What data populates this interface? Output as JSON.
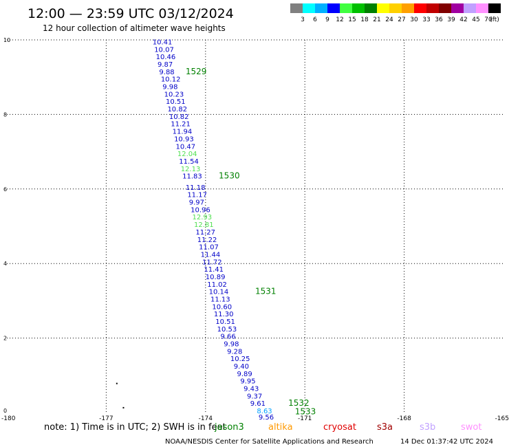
{
  "header": {
    "title": "12:00 — 23:59 UTC 03/12/2024",
    "subtitle": "12 hour collection of altimeter wave heights",
    "color_scale": {
      "colors": [
        "#808080",
        "#00ffff",
        "#00b0ff",
        "#0000ff",
        "#40ff40",
        "#00c000",
        "#008000",
        "#ffff00",
        "#ffd000",
        "#ffa000",
        "#ff0000",
        "#c00000",
        "#800000",
        "#a000a0",
        "#c0a0ff",
        "#ff90ff",
        "#000000"
      ],
      "labels": [
        "3",
        "6",
        "9",
        "12",
        "15",
        "18",
        "21",
        "24",
        "27",
        "30",
        "33",
        "36",
        "39",
        "42",
        "45",
        "70",
        "(ft)"
      ]
    }
  },
  "chart_data": {
    "type": "scatter",
    "title": "12:00 — 23:59 UTC 03/12/2024",
    "subtitle": "12 hour collection of altimeter wave heights",
    "xlabel": "",
    "ylabel": "",
    "xlim": [
      -180,
      -165
    ],
    "ylim": [
      0,
      10
    ],
    "x_ticks": [
      "-180",
      "-177",
      "-174",
      "-171",
      "-168",
      "-165"
    ],
    "y_ticks": [
      "0",
      "2",
      "4",
      "6",
      "8",
      "10"
    ],
    "grid": true,
    "points": [
      {
        "x": -175.6,
        "y": 9.88,
        "label": "10.41",
        "color": "#0000c8"
      },
      {
        "x": -175.55,
        "y": 9.68,
        "label": "10.07",
        "color": "#0000c8"
      },
      {
        "x": -175.5,
        "y": 9.48,
        "label": "10.46",
        "color": "#0000c8"
      },
      {
        "x": -175.45,
        "y": 9.28,
        "label": "9.87",
        "color": "#0000c8"
      },
      {
        "x": -175.4,
        "y": 9.08,
        "label": "9.88",
        "color": "#0000c8"
      },
      {
        "x": -175.35,
        "y": 8.88,
        "label": "10.12",
        "color": "#0000c8"
      },
      {
        "x": -175.3,
        "y": 8.68,
        "label": "9.98",
        "color": "#0000c8"
      },
      {
        "x": -175.25,
        "y": 8.48,
        "label": "10.23",
        "color": "#0000c8"
      },
      {
        "x": -175.2,
        "y": 8.28,
        "label": "10.51",
        "color": "#0000c8"
      },
      {
        "x": -175.15,
        "y": 8.08,
        "label": "10.82",
        "color": "#0000c8"
      },
      {
        "x": -175.1,
        "y": 7.88,
        "label": "10.82",
        "color": "#0000c8"
      },
      {
        "x": -175.05,
        "y": 7.68,
        "label": "11.21",
        "color": "#0000c8"
      },
      {
        "x": -175.0,
        "y": 7.48,
        "label": "11.94",
        "color": "#0000c8"
      },
      {
        "x": -174.95,
        "y": 7.28,
        "label": "10.93",
        "color": "#0000c8"
      },
      {
        "x": -174.9,
        "y": 7.08,
        "label": "10.47",
        "color": "#0000c8"
      },
      {
        "x": -174.85,
        "y": 6.88,
        "label": "12.04",
        "color": "#50e050"
      },
      {
        "x": -174.8,
        "y": 6.68,
        "label": "11.54",
        "color": "#0000c8"
      },
      {
        "x": -174.75,
        "y": 6.48,
        "label": "12.13",
        "color": "#50e050"
      },
      {
        "x": -174.7,
        "y": 6.28,
        "label": "11.83",
        "color": "#0000c8"
      },
      {
        "x": -174.6,
        "y": 5.98,
        "label": "11.18",
        "color": "#0000c8"
      },
      {
        "x": -174.55,
        "y": 5.78,
        "label": "11.17",
        "color": "#0000c8"
      },
      {
        "x": -174.5,
        "y": 5.58,
        "label": "9.97",
        "color": "#0000c8"
      },
      {
        "x": -174.45,
        "y": 5.38,
        "label": "10.96",
        "color": "#0000c8"
      },
      {
        "x": -174.4,
        "y": 5.18,
        "label": "12.93",
        "color": "#50e050"
      },
      {
        "x": -174.35,
        "y": 4.98,
        "label": "12.81",
        "color": "#50e050"
      },
      {
        "x": -174.3,
        "y": 4.78,
        "label": "11.27",
        "color": "#0000c8"
      },
      {
        "x": -174.25,
        "y": 4.58,
        "label": "11.22",
        "color": "#0000c8"
      },
      {
        "x": -174.2,
        "y": 4.38,
        "label": "11.07",
        "color": "#0000c8"
      },
      {
        "x": -174.15,
        "y": 4.18,
        "label": "11.44",
        "color": "#0000c8"
      },
      {
        "x": -174.1,
        "y": 3.98,
        "label": "11.72",
        "color": "#0000c8"
      },
      {
        "x": -174.05,
        "y": 3.78,
        "label": "11.41",
        "color": "#0000c8"
      },
      {
        "x": -174.0,
        "y": 3.58,
        "label": "10.89",
        "color": "#0000c8"
      },
      {
        "x": -173.95,
        "y": 3.38,
        "label": "11.02",
        "color": "#0000c8"
      },
      {
        "x": -173.9,
        "y": 3.18,
        "label": "10.14",
        "color": "#0000c8"
      },
      {
        "x": -173.85,
        "y": 2.98,
        "label": "11.13",
        "color": "#0000c8"
      },
      {
        "x": -173.8,
        "y": 2.78,
        "label": "10.60",
        "color": "#0000c8"
      },
      {
        "x": -173.75,
        "y": 2.58,
        "label": "11.30",
        "color": "#0000c8"
      },
      {
        "x": -173.7,
        "y": 2.38,
        "label": "10.51",
        "color": "#0000c8"
      },
      {
        "x": -173.65,
        "y": 2.18,
        "label": "10.53",
        "color": "#0000c8"
      },
      {
        "x": -173.55,
        "y": 1.98,
        "label": "9.66",
        "color": "#0000c8"
      },
      {
        "x": -173.45,
        "y": 1.78,
        "label": "9.98",
        "color": "#0000c8"
      },
      {
        "x": -173.35,
        "y": 1.58,
        "label": "9.28",
        "color": "#0000c8"
      },
      {
        "x": -173.25,
        "y": 1.38,
        "label": "10.25",
        "color": "#0000c8"
      },
      {
        "x": -173.15,
        "y": 1.18,
        "label": "9.40",
        "color": "#0000c8"
      },
      {
        "x": -173.05,
        "y": 0.98,
        "label": "9.89",
        "color": "#0000c8"
      },
      {
        "x": -172.95,
        "y": 0.78,
        "label": "9.95",
        "color": "#0000c8"
      },
      {
        "x": -172.85,
        "y": 0.58,
        "label": "9.43",
        "color": "#0000c8"
      },
      {
        "x": -172.75,
        "y": 0.38,
        "label": "9.37",
        "color": "#0000c8"
      },
      {
        "x": -172.65,
        "y": 0.18,
        "label": "9.61",
        "color": "#0000c8"
      },
      {
        "x": -172.45,
        "y": -0.02,
        "label": "8.63",
        "color": "#00a0ff"
      },
      {
        "x": -172.4,
        "y": -0.18,
        "label": "9.56",
        "color": "#0000c8"
      }
    ],
    "time_labels": [
      {
        "x": -174.6,
        "y": 9.08,
        "label": "1529"
      },
      {
        "x": -173.6,
        "y": 6.28,
        "label": "1530"
      },
      {
        "x": -172.5,
        "y": 3.18,
        "label": "1531"
      },
      {
        "x": -171.5,
        "y": 0.18,
        "label": "1532"
      },
      {
        "x": -171.3,
        "y": -0.05,
        "label": "1533"
      }
    ],
    "extra_marks": [
      {
        "x": -176.7,
        "y": 0.8
      },
      {
        "x": -176.5,
        "y": 0.15
      }
    ]
  },
  "footer": {
    "note": "note:  1) Time is in UTC;  2) SWH is in feet",
    "legend": [
      {
        "name": "jason3",
        "color": "#008000"
      },
      {
        "name": "altika",
        "color": "#ff9900"
      },
      {
        "name": "cryosat",
        "color": "#e00000"
      },
      {
        "name": "s3a",
        "color": "#a00000"
      },
      {
        "name": "s3b",
        "color": "#c0a0ff"
      },
      {
        "name": "swot",
        "color": "#ff90ff"
      }
    ],
    "credit": "NOAA/NESDIS Center for Satellite Applications and Research",
    "timestamp": "14 Dec 01:37:42 UTC 2024"
  }
}
